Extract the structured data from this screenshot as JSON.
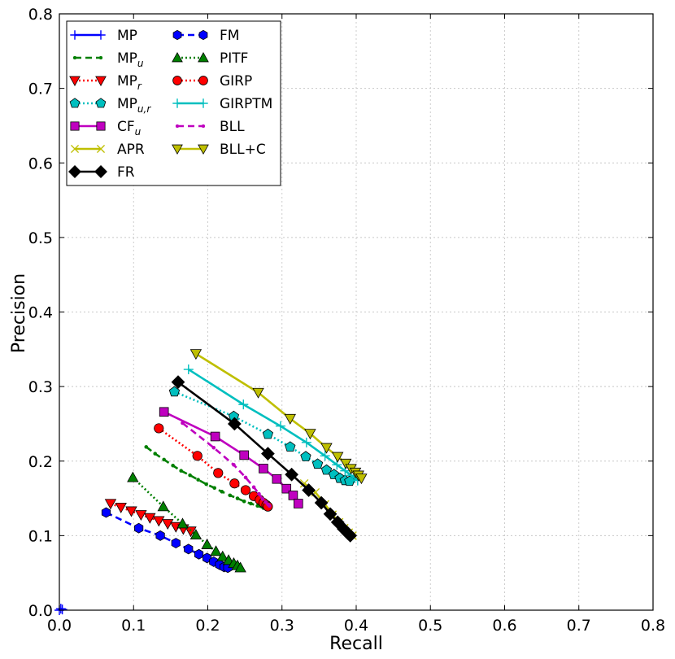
{
  "chart_data": {
    "type": "line",
    "title": "",
    "xlabel": "Recall",
    "ylabel": "Precision",
    "xlim": [
      0.0,
      0.8
    ],
    "ylim": [
      0.0,
      0.8
    ],
    "xticks": [
      0.0,
      0.1,
      0.2,
      0.3,
      0.4,
      0.5,
      0.6,
      0.7,
      0.8
    ],
    "yticks": [
      0.0,
      0.1,
      0.2,
      0.3,
      0.4,
      0.5,
      0.6,
      0.7,
      0.8
    ],
    "xtick_labels": [
      "0.0",
      "0.1",
      "0.2",
      "0.3",
      "0.4",
      "0.5",
      "0.6",
      "0.7",
      "0.8"
    ],
    "ytick_labels": [
      "0.0",
      "0.1",
      "0.2",
      "0.3",
      "0.4",
      "0.5",
      "0.6",
      "0.7",
      "0.8"
    ],
    "grid": true,
    "legend_position": "top-left",
    "series": [
      {
        "name": "MP",
        "label": "MP",
        "sub": "",
        "color": "#0000ff",
        "linestyle": "solid",
        "marker": "plus",
        "x": [
          0.0,
          0.002,
          0.004
        ],
        "y": [
          0.0,
          0.002,
          0.001
        ]
      },
      {
        "name": "MPu",
        "label": "MP",
        "sub": "u",
        "color": "#007f00",
        "linestyle": "dashed",
        "marker": "dot",
        "x": [
          0.117,
          0.129,
          0.141,
          0.153,
          0.164,
          0.176,
          0.187,
          0.198,
          0.209,
          0.219,
          0.23,
          0.24,
          0.249,
          0.258,
          0.267,
          0.275
        ],
        "y": [
          0.219,
          0.21,
          0.202,
          0.194,
          0.187,
          0.181,
          0.175,
          0.169,
          0.164,
          0.159,
          0.154,
          0.15,
          0.146,
          0.143,
          0.14,
          0.137
        ]
      },
      {
        "name": "MPr",
        "label": "MP",
        "sub": "r",
        "color": "#ff0000",
        "linestyle": "dotted",
        "marker": "triangle-down",
        "x": [
          0.069,
          0.083,
          0.097,
          0.11,
          0.122,
          0.134,
          0.146,
          0.157,
          0.167,
          0.177
        ],
        "y": [
          0.143,
          0.138,
          0.133,
          0.128,
          0.124,
          0.12,
          0.116,
          0.112,
          0.109,
          0.106
        ]
      },
      {
        "name": "MPu,r",
        "label": "MP",
        "sub": "u,r",
        "color": "#00bfbf",
        "linestyle": "dotted",
        "marker": "pentagon",
        "x": [
          0.155,
          0.235,
          0.281,
          0.311,
          0.332,
          0.348,
          0.36,
          0.37,
          0.378,
          0.385,
          0.391
        ],
        "y": [
          0.293,
          0.26,
          0.236,
          0.219,
          0.206,
          0.196,
          0.188,
          0.182,
          0.177,
          0.174,
          0.173
        ]
      },
      {
        "name": "CFu",
        "label": "CF",
        "sub": "u",
        "color": "#bf00bf",
        "linestyle": "solid",
        "marker": "square",
        "x": [
          0.141,
          0.21,
          0.249,
          0.275,
          0.293,
          0.306,
          0.315,
          0.322
        ],
        "y": [
          0.266,
          0.233,
          0.208,
          0.19,
          0.176,
          0.163,
          0.154,
          0.143
        ]
      },
      {
        "name": "APR",
        "label": "APR",
        "sub": "",
        "color": "#bfbf00",
        "linestyle": "solid",
        "marker": "x",
        "x": [
          0.33,
          0.345,
          0.358,
          0.368,
          0.377,
          0.384,
          0.39,
          0.395
        ],
        "y": [
          0.17,
          0.158,
          0.142,
          0.128,
          0.118,
          0.11,
          0.104,
          0.1
        ]
      },
      {
        "name": "FR",
        "label": "FR",
        "sub": "",
        "color": "#000000",
        "linestyle": "solid",
        "marker": "diamond",
        "x": [
          0.16,
          0.236,
          0.281,
          0.313,
          0.336,
          0.353,
          0.365,
          0.375,
          0.383,
          0.389,
          0.392
        ],
        "y": [
          0.306,
          0.25,
          0.21,
          0.182,
          0.161,
          0.144,
          0.129,
          0.118,
          0.109,
          0.103,
          0.1
        ]
      },
      {
        "name": "FM",
        "label": "FM",
        "sub": "",
        "color": "#0000ff",
        "linestyle": "dashed",
        "marker": "hexagon",
        "x": [
          0.063,
          0.107,
          0.136,
          0.157,
          0.174,
          0.188,
          0.199,
          0.208,
          0.216,
          0.222,
          0.227
        ],
        "y": [
          0.131,
          0.11,
          0.1,
          0.09,
          0.082,
          0.075,
          0.07,
          0.065,
          0.061,
          0.058,
          0.057
        ]
      },
      {
        "name": "PITF",
        "label": "PITF",
        "sub": "",
        "color": "#007f00",
        "linestyle": "dotted",
        "marker": "triangle-up",
        "x": [
          0.099,
          0.14,
          0.166,
          0.184,
          0.199,
          0.211,
          0.22,
          0.228,
          0.235,
          0.24,
          0.244
        ],
        "y": [
          0.178,
          0.139,
          0.116,
          0.101,
          0.088,
          0.079,
          0.072,
          0.067,
          0.063,
          0.06,
          0.057
        ]
      },
      {
        "name": "GIRP",
        "label": "GIRP",
        "sub": "",
        "color": "#ff0000",
        "linestyle": "dotted",
        "marker": "circle",
        "x": [
          0.134,
          0.186,
          0.214,
          0.236,
          0.251,
          0.262,
          0.27,
          0.275,
          0.279,
          0.281
        ],
        "y": [
          0.244,
          0.207,
          0.184,
          0.17,
          0.161,
          0.153,
          0.148,
          0.144,
          0.141,
          0.139
        ]
      },
      {
        "name": "GIRPTM",
        "label": "GIRPTM",
        "sub": "",
        "color": "#00bfbf",
        "linestyle": "solid",
        "marker": "plus",
        "x": [
          0.174,
          0.248,
          0.298,
          0.333,
          0.358,
          0.374,
          0.385,
          0.393,
          0.398,
          0.402
        ],
        "y": [
          0.323,
          0.276,
          0.247,
          0.225,
          0.207,
          0.195,
          0.187,
          0.181,
          0.177,
          0.174
        ]
      },
      {
        "name": "BLL",
        "label": "BLL",
        "sub": "",
        "color": "#bf00bf",
        "linestyle": "dashed",
        "marker": "dot",
        "x": [
          0.166,
          0.208,
          0.235,
          0.251,
          0.262,
          0.269,
          0.274,
          0.278,
          0.281,
          0.283
        ],
        "y": [
          0.251,
          0.218,
          0.195,
          0.178,
          0.165,
          0.156,
          0.149,
          0.145,
          0.142,
          0.14
        ]
      },
      {
        "name": "BLL+C",
        "label": "BLL+C",
        "sub": "",
        "color": "#bfbf00",
        "linestyle": "solid",
        "marker": "triangle-down",
        "x": [
          0.184,
          0.268,
          0.311,
          0.338,
          0.36,
          0.375,
          0.386,
          0.393,
          0.399,
          0.403,
          0.407
        ],
        "y": [
          0.344,
          0.292,
          0.257,
          0.237,
          0.218,
          0.206,
          0.197,
          0.19,
          0.185,
          0.181,
          0.177
        ]
      }
    ]
  }
}
